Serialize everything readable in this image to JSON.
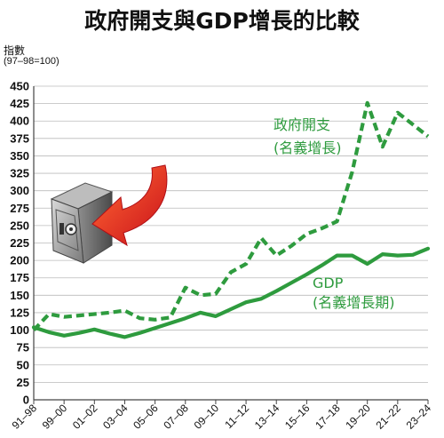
{
  "chart_data": {
    "type": "line",
    "title": "政府開支與GDP增長的比較",
    "ylabel": "指數",
    "ylabel_note": "(97–98=100)",
    "ylim": [
      0,
      450
    ],
    "yticks": [
      0,
      25,
      50,
      75,
      100,
      125,
      150,
      175,
      200,
      225,
      250,
      275,
      300,
      325,
      350,
      375,
      400,
      425,
      450
    ],
    "grid": true,
    "categories": [
      "91–98",
      "99–00",
      "01–02",
      "03–04",
      "05–06",
      "07–08",
      "09–10",
      "11–12",
      "13–14",
      "15–16",
      "17–18",
      "19–20",
      "21–22",
      "23–24"
    ],
    "x": [
      0,
      1,
      2,
      3,
      4,
      5,
      6,
      7,
      8,
      9,
      10,
      11,
      12,
      13,
      14,
      15,
      16,
      17,
      18,
      19,
      20,
      21,
      22,
      23,
      24,
      25,
      26
    ],
    "series": [
      {
        "name": "政府開支",
        "name_line2": "(名義增長)",
        "style": "dashed",
        "color": "#2e9b3e",
        "values": [
          100,
          123,
          119,
          121,
          123,
          125,
          128,
          117,
          115,
          118,
          161,
          150,
          152,
          183,
          195,
          232,
          207,
          221,
          238,
          246,
          256,
          327,
          426,
          363,
          412,
          395,
          378
        ]
      },
      {
        "name": "GDP",
        "name_line2": "(名義增長期)",
        "style": "solid",
        "color": "#2e9b3e",
        "values": [
          104,
          97,
          92,
          96,
          101,
          95,
          90,
          96,
          103,
          110,
          117,
          125,
          120,
          130,
          140,
          145,
          156,
          168,
          180,
          193,
          207,
          207,
          195,
          209,
          207,
          208,
          217
        ]
      }
    ]
  },
  "colors": {
    "series": "#2e9b3e",
    "arrow": "#e2231a",
    "grid": "#bbbbbb"
  },
  "icons": {
    "illustration": "safe-icon",
    "arrow": "arrow-icon"
  }
}
